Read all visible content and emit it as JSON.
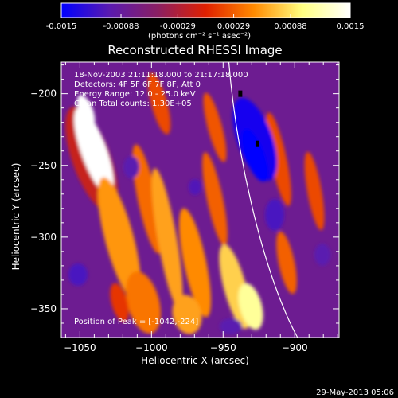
{
  "colorbar": {
    "tick_labels": [
      "-0.0015",
      "-0.00088",
      "-0.00029",
      "0.00029",
      "0.00088",
      "0.0015"
    ],
    "ticks": [
      -0.0015,
      -0.00088,
      -0.00029,
      0.00029,
      0.00088,
      0.0015
    ],
    "range": [
      -0.0015,
      0.0015
    ],
    "units_label": "(photons cm⁻² s⁻¹ asec⁻²)",
    "colors": [
      "#0000ff",
      "#5a1ab0",
      "#8a1f63",
      "#e02000",
      "#ff8a00",
      "#ffff80",
      "#ffffff"
    ]
  },
  "chart_data": {
    "type": "heatmap",
    "title": "Reconstructed RHESSI Image",
    "xlabel": "Heliocentric X (arcsec)",
    "ylabel": "Heliocentric Y (arcsec)",
    "xlim": [
      -1063,
      -869
    ],
    "ylim": [
      -370,
      -178
    ],
    "x_ticks": [
      -1050,
      -1000,
      -950,
      -900
    ],
    "y_ticks": [
      -350,
      -300,
      -250,
      -200
    ],
    "annotations": [
      "18-Nov-2003 21:11:18.000 to 21:17:18.000",
      "Detectors: 4F 5F 6F 7F 8F, Att 0",
      "Energy Range: 12.0 - 25.0 keV",
      "Clean    Total counts: 1.30E+05"
    ],
    "peak_label": "Position of Peak = [-1042,-224]",
    "peak": [
      -1042,
      -224
    ],
    "value_range": [
      -0.0015,
      0.0015
    ],
    "features": [
      {
        "name": "bright-ridge",
        "x": -1042,
        "y": -224,
        "value": 0.0015
      },
      {
        "name": "bright-lower",
        "x": -935,
        "y": -355,
        "value": 0.0011
      },
      {
        "name": "negative-blob",
        "x": -938,
        "y": -215,
        "value": -0.0015
      }
    ],
    "limb_arc": [
      [
        -946,
        -178
      ],
      [
        -940,
        -250
      ],
      [
        -920,
        -330
      ],
      [
        -898,
        -370
      ]
    ],
    "markers": [
      [
        -938,
        -200
      ],
      [
        -926,
        -235
      ]
    ]
  },
  "footer": {
    "timestamp": "29-May-2013 05:06"
  }
}
